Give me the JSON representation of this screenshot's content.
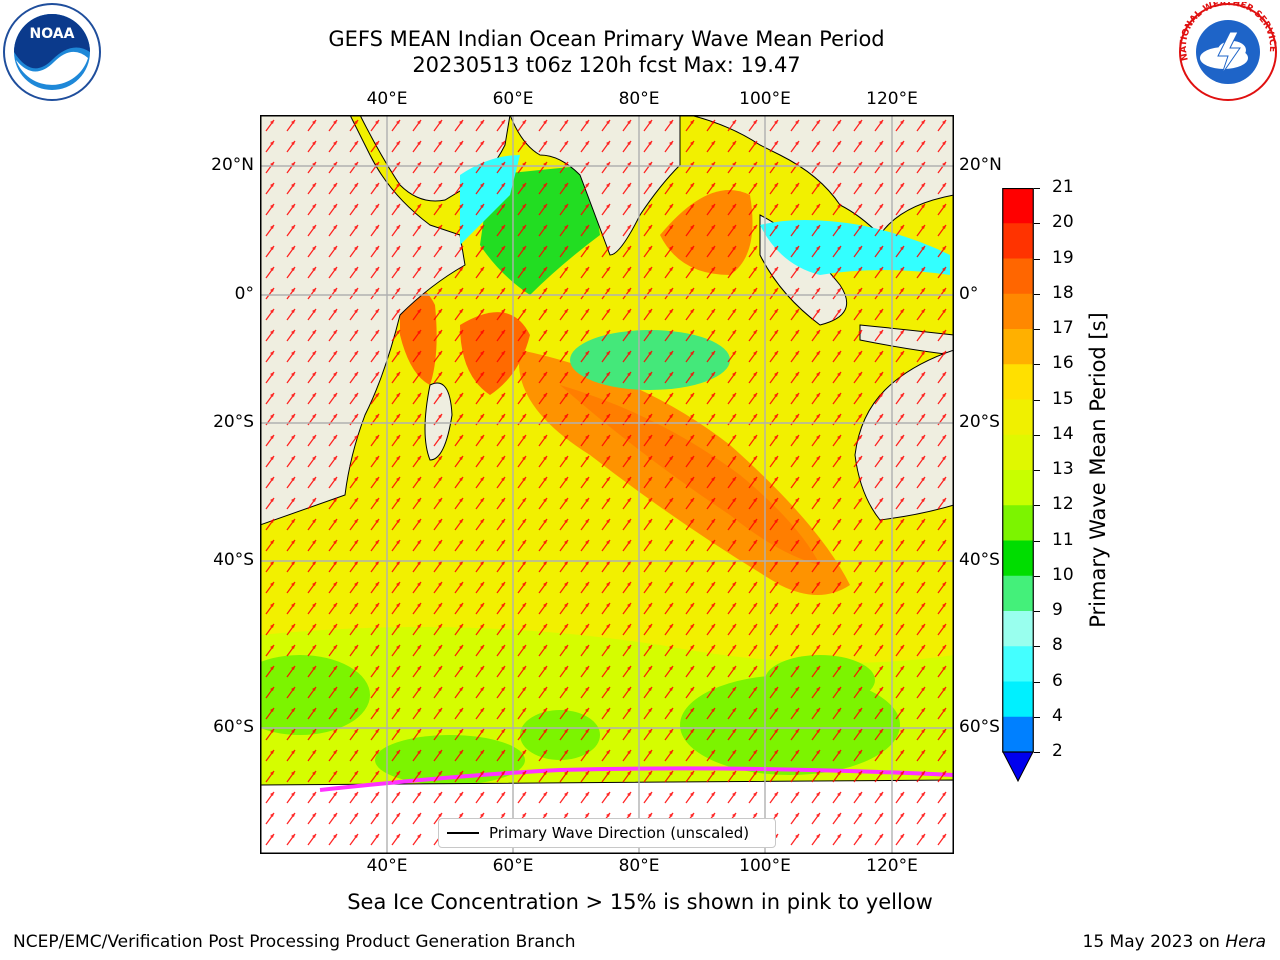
{
  "title": {
    "line1": "GEFS MEAN Indian Ocean Primary Wave Mean Period",
    "line2": "20230513 t06z 120h fcst   Max: 19.47"
  },
  "logos": {
    "left": {
      "icon": "noaa-logo",
      "text": "NOAA"
    },
    "right": {
      "icon": "nws-logo",
      "text": "NATIONAL WEATHER SERVICE"
    }
  },
  "map": {
    "lon_ticks": [
      "40°E",
      "60°E",
      "80°E",
      "100°E",
      "120°E"
    ],
    "lat_ticks": [
      "20°N",
      "0°",
      "20°S",
      "40°S",
      "60°S"
    ],
    "legend_label": "Primary Wave Direction (unscaled)",
    "colors": {
      "land": "#efeee0",
      "grid": "#b0b0b0",
      "arrow": "#ff0000"
    }
  },
  "colorbar": {
    "label": "Primary Wave Mean Period [s]",
    "ticks": [
      "21",
      "20",
      "19",
      "18",
      "17",
      "16",
      "15",
      "14",
      "13",
      "12",
      "11",
      "10",
      "9",
      "8",
      "6",
      "4",
      "2"
    ],
    "colors": [
      "#ff0000",
      "#ff3300",
      "#ff6600",
      "#ff8800",
      "#ffb000",
      "#ffe000",
      "#f0f000",
      "#e0f800",
      "#c8ff00",
      "#7cf400",
      "#00dd00",
      "#44f07a",
      "#99ffee",
      "#44ffff",
      "#00f0ff",
      "#0080ff"
    ],
    "extend_color": "#0000ee"
  },
  "caption": "Sea Ice Concentration > 15% is shown in pink to yellow",
  "footer": {
    "left": "NCEP/EMC/Verification Post Processing Product Generation Branch",
    "right_prefix": "15 May 2023 on ",
    "right_italic": "Hera"
  }
}
